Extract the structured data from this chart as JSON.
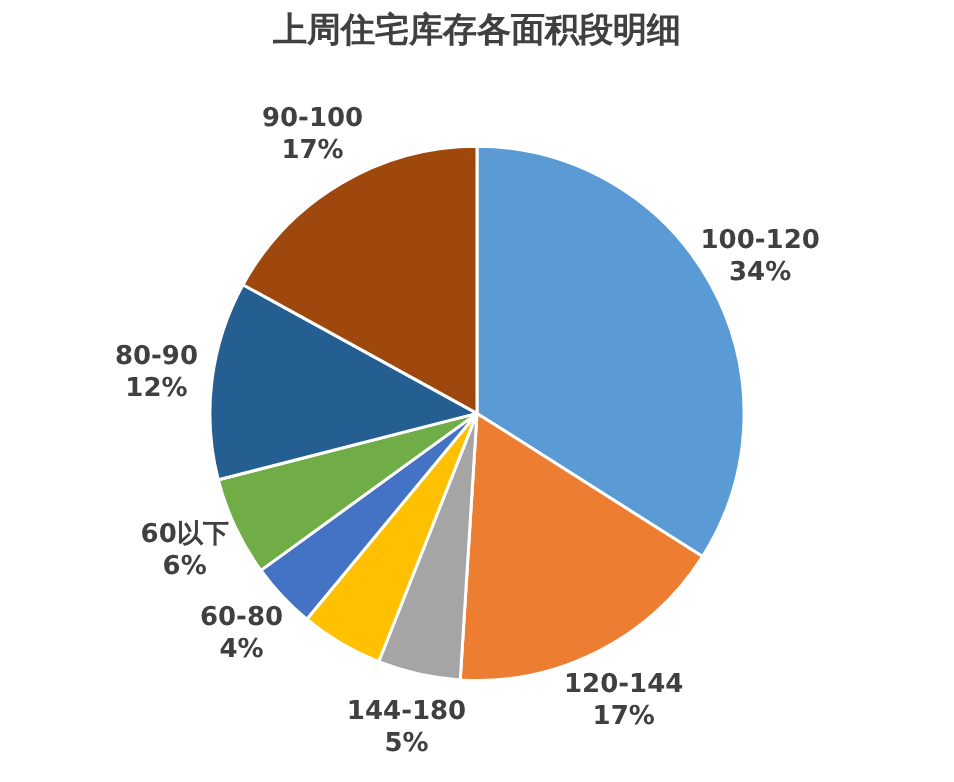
{
  "chart_data": {
    "type": "pie",
    "title": "上周住宅库存各面积段明细",
    "categories": [
      "100-120",
      "120-144",
      "144-180",
      null,
      "60-80",
      "60以下",
      "80-90",
      "90-100"
    ],
    "values": [
      34,
      17,
      5,
      5,
      4,
      6,
      12,
      17
    ],
    "colors": [
      "#5b9bd5",
      "#ed7d31",
      "#a5a5a5",
      "#ffc000",
      "#4472c4",
      "#70ad47",
      "#255e91",
      "#9e480e"
    ],
    "value_labels": [
      "34%",
      "17%",
      "5%",
      null,
      "4%",
      "6%",
      "12%",
      "17%"
    ],
    "legend": false
  }
}
